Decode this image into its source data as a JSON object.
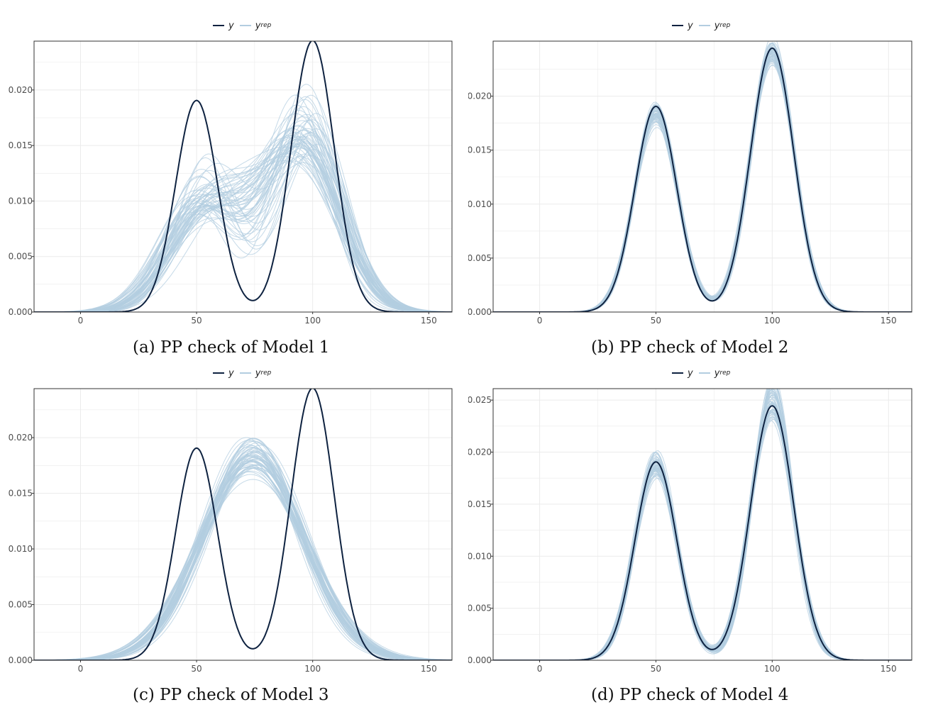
{
  "legend": {
    "y_label": "y",
    "yrep_label": "y",
    "yrep_sub": "rep"
  },
  "colors": {
    "y": "#0e2240",
    "yrep": "#b3cde0",
    "grid": "#ebebeb",
    "frame": "#333333"
  },
  "chart_data": [
    {
      "type": "line",
      "caption": "(a) PP check of Model 1",
      "xlim": [
        -20,
        160
      ],
      "ylim": [
        0,
        0.0244
      ],
      "x_ticks": [
        0,
        50,
        100,
        150
      ],
      "y_ticks": [
        0,
        0.005,
        0.01,
        0.015,
        0.02
      ],
      "y_tick_labels": [
        "0.000",
        "0.005",
        "0.010",
        "0.015",
        "0.020"
      ],
      "observed": {
        "name": "y",
        "components": [
          {
            "w": 0.43,
            "mu": 50,
            "sd": 9
          },
          {
            "w": 0.57,
            "mu": 100,
            "sd": 9.3
          }
        ]
      },
      "replicated": {
        "name": "y_rep",
        "model": "bimodal-wide",
        "n_draws": 60
      }
    },
    {
      "type": "line",
      "caption": "(b) PP check of Model 2",
      "xlim": [
        -20,
        160
      ],
      "ylim": [
        0,
        0.0251
      ],
      "x_ticks": [
        0,
        50,
        100,
        150
      ],
      "y_ticks": [
        0,
        0.005,
        0.01,
        0.015,
        0.02
      ],
      "y_tick_labels": [
        "0.000",
        "0.005",
        "0.010",
        "0.015",
        "0.020"
      ],
      "observed": {
        "name": "y",
        "components": [
          {
            "w": 0.43,
            "mu": 50,
            "sd": 9
          },
          {
            "w": 0.57,
            "mu": 100,
            "sd": 9.3
          }
        ]
      },
      "replicated": {
        "name": "y_rep",
        "model": "close",
        "n_draws": 60
      }
    },
    {
      "type": "line",
      "caption": "(c) PP check of Model 3",
      "xlim": [
        -20,
        160
      ],
      "ylim": [
        0,
        0.0244
      ],
      "x_ticks": [
        0,
        50,
        100,
        150
      ],
      "y_ticks": [
        0,
        0.005,
        0.01,
        0.015,
        0.02
      ],
      "y_tick_labels": [
        "0.000",
        "0.005",
        "0.010",
        "0.015",
        "0.020"
      ],
      "observed": {
        "name": "y",
        "components": [
          {
            "w": 0.43,
            "mu": 50,
            "sd": 9
          },
          {
            "w": 0.57,
            "mu": 100,
            "sd": 9.3
          }
        ]
      },
      "replicated": {
        "name": "y_rep",
        "model": "unimodal",
        "n_draws": 60
      }
    },
    {
      "type": "line",
      "caption": "(d) PP check of Model 4",
      "xlim": [
        -20,
        160
      ],
      "ylim": [
        0,
        0.0261
      ],
      "x_ticks": [
        0,
        50,
        100,
        150
      ],
      "y_ticks": [
        0,
        0.005,
        0.01,
        0.015,
        0.02,
        0.025
      ],
      "y_tick_labels": [
        "0.000",
        "0.005",
        "0.010",
        "0.015",
        "0.020",
        "0.025"
      ],
      "observed": {
        "name": "y",
        "components": [
          {
            "w": 0.43,
            "mu": 50,
            "sd": 9
          },
          {
            "w": 0.57,
            "mu": 100,
            "sd": 9.3
          }
        ]
      },
      "replicated": {
        "name": "y_rep",
        "model": "close-wide",
        "n_draws": 60
      }
    }
  ]
}
